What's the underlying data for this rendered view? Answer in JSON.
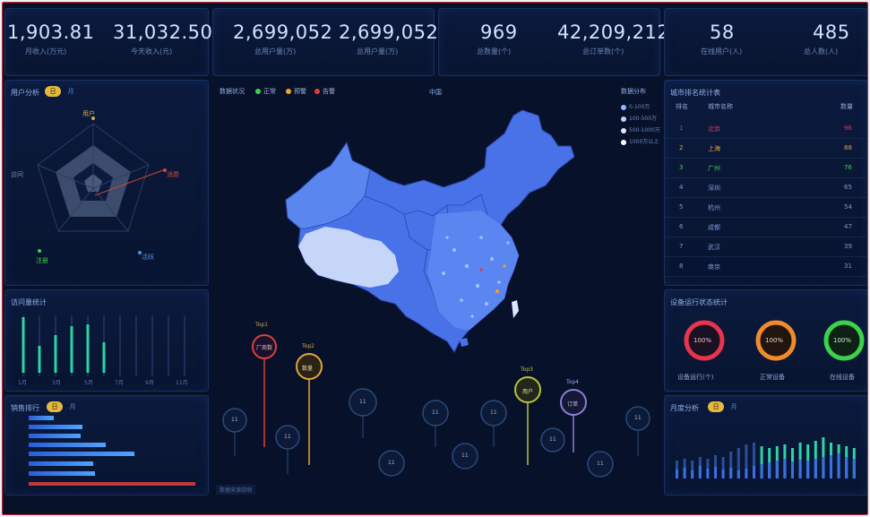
{
  "stats": [
    {
      "value": "1,903.81",
      "label": "月收入(万元)"
    },
    {
      "value": "31,032.50",
      "label": "今天收入(元)"
    },
    {
      "value": "2,699,052",
      "label": "总用户量(万)"
    },
    {
      "value": "2,699,052",
      "label": "总用户量(万)"
    },
    {
      "value": "969",
      "label": "总数量(个)"
    },
    {
      "value": "42,209,212",
      "label": "总订单数(个)"
    },
    {
      "value": "58",
      "label": "在线用户(人)"
    },
    {
      "value": "485",
      "label": "总人数(人)"
    }
  ],
  "radar": {
    "title": "用户分析",
    "toggle_on": "日",
    "toggle_off": "月",
    "axes": [
      "用户",
      "消费",
      "活跃",
      "注册",
      "访问"
    ]
  },
  "bars_panel": {
    "title": "访问量统计",
    "ticks": [
      "1月",
      "3月",
      "5月",
      "7月",
      "9月",
      "11月"
    ]
  },
  "hbar_panel": {
    "title": "销售排行",
    "toggle_on": "日",
    "toggle_off": "月"
  },
  "map_panel": {
    "title": "数据状况",
    "legend": [
      {
        "label": "正常",
        "color": "#3ad34b"
      },
      {
        "label": "预警",
        "color": "#f0a22b"
      },
      {
        "label": "告警",
        "color": "#e83a3a"
      }
    ],
    "center_label": "中国",
    "right_legend_title": "数据分布",
    "right_legend": [
      "0-100万",
      "100-500万",
      "500-1000万",
      "1000万以上"
    ],
    "footer": "数据来源说明"
  },
  "pins": [
    {
      "tag": "Top1",
      "label": "厂商数",
      "color": "#d9423a"
    },
    {
      "tag": "Top2",
      "label": "数量",
      "color": "#e0a53a"
    },
    {
      "tag": "Top3",
      "label": "用户",
      "color": "#b8c43a"
    },
    {
      "tag": "Top4",
      "label": "订单",
      "color": "#8a7fd6"
    }
  ],
  "bubbles": [
    "11",
    "11",
    "11",
    "11",
    "11",
    "11",
    "11",
    "11",
    "11",
    "11",
    "11"
  ],
  "rank": {
    "title": "城市排名统计表",
    "headers": [
      "排名",
      "城市名称",
      "数量"
    ],
    "rows": [
      {
        "rank": "1",
        "city": "北京",
        "val": "96"
      },
      {
        "rank": "2",
        "city": "上海",
        "val": "88"
      },
      {
        "rank": "3",
        "city": "广州",
        "val": "76"
      },
      {
        "rank": "4",
        "city": "深圳",
        "val": "65"
      },
      {
        "rank": "5",
        "city": "杭州",
        "val": "54"
      },
      {
        "rank": "6",
        "city": "成都",
        "val": "47"
      },
      {
        "rank": "7",
        "city": "武汉",
        "val": "39"
      },
      {
        "rank": "8",
        "city": "南京",
        "val": "31"
      }
    ]
  },
  "rings": {
    "title": "设备运行状态统计",
    "items": [
      {
        "pct": "100%",
        "label": "设备运行(个)",
        "color": "#e8344e"
      },
      {
        "pct": "100%",
        "label": "正常设备",
        "color": "#f08a2c"
      },
      {
        "pct": "100%",
        "label": "在线设备",
        "color": "#3ad34b"
      }
    ]
  },
  "dist": {
    "title": "月度分析",
    "toggle_on": "日",
    "toggle_off": "月"
  }
}
